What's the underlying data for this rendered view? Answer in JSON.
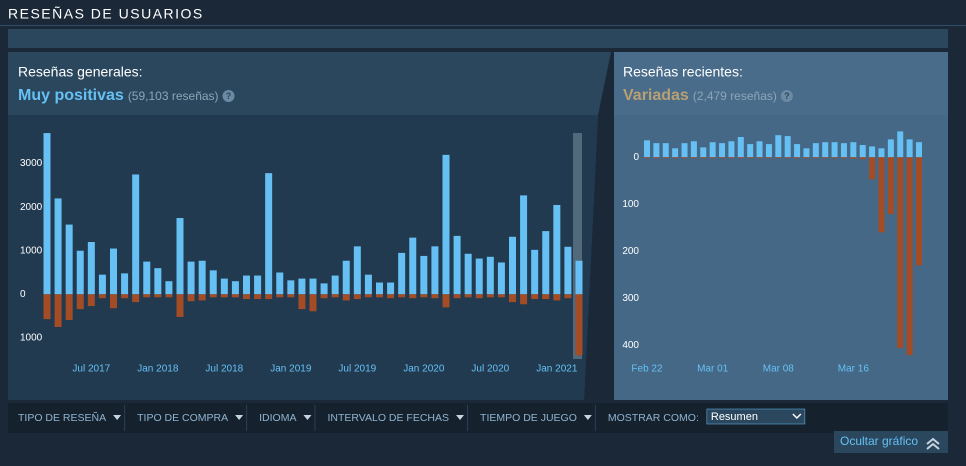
{
  "header": {
    "title": "RESEÑAS DE USUARIOS"
  },
  "chart_data": [
    {
      "type": "bar",
      "title": "Reseñas generales:",
      "rating": "Muy positivas",
      "rating_color": "#66c0f4",
      "review_count": "(59,103 reseñas)",
      "help": "?",
      "categories": [
        null,
        null,
        null,
        null,
        "Jul 2017",
        null,
        null,
        null,
        null,
        null,
        "Jan 2018",
        null,
        null,
        null,
        null,
        null,
        "Jul 2018",
        null,
        null,
        null,
        null,
        null,
        "Jan 2019",
        null,
        null,
        null,
        null,
        null,
        "Jul 2019",
        null,
        null,
        null,
        null,
        null,
        "Jan 2020",
        null,
        null,
        null,
        null,
        null,
        "Jul 2020",
        null,
        null,
        null,
        null,
        null,
        "Jan 2021",
        null,
        null
      ],
      "series": [
        {
          "color": "#66c0f4",
          "values": [
            3700,
            2200,
            1600,
            1000,
            1200,
            450,
            1050,
            480,
            2750,
            750,
            600,
            300,
            1750,
            750,
            770,
            550,
            360,
            300,
            430,
            430,
            2780,
            500,
            320,
            360,
            360,
            250,
            430,
            770,
            1100,
            450,
            270,
            270,
            950,
            1300,
            880,
            1100,
            3200,
            1340,
            930,
            820,
            860,
            730,
            1320,
            2270,
            1020,
            1450,
            2050,
            1090,
            770
          ]
        },
        {
          "color": "#a34c25",
          "values": [
            -570,
            -750,
            -590,
            -340,
            -270,
            -90,
            -320,
            -90,
            -180,
            -70,
            -70,
            -70,
            -520,
            -160,
            -140,
            -70,
            -70,
            -70,
            -110,
            -110,
            -110,
            -70,
            -70,
            -340,
            -390,
            -90,
            -70,
            -140,
            -110,
            -70,
            -70,
            -90,
            -70,
            -90,
            -70,
            -90,
            -300,
            -90,
            -70,
            -90,
            -70,
            -70,
            -180,
            -230,
            -110,
            -110,
            -140,
            -90,
            -1400
          ]
        }
      ],
      "ylim": [
        -1600,
        4000
      ],
      "yticks": [
        3000,
        2000,
        {
          "value": 1000,
          "label": "1000"
        },
        0,
        {
          "value": -1000,
          "label": "1000"
        }
      ]
    },
    {
      "type": "bar",
      "title": "Reseñas recientes:",
      "rating": "Variadas",
      "rating_color": "#b9a074",
      "review_count": "(2,479 reseñas)",
      "help": "?",
      "categories": [
        "Feb 22",
        null,
        null,
        null,
        null,
        null,
        null,
        "Mar 01",
        null,
        null,
        null,
        null,
        null,
        null,
        "Mar 08",
        null,
        null,
        null,
        null,
        null,
        null,
        null,
        "Mar 16",
        null,
        null,
        null,
        null,
        null,
        null,
        null
      ],
      "series": [
        {
          "color": "#66c0f4",
          "values": [
            36,
            30,
            30,
            19,
            30,
            34,
            21,
            32,
            30,
            34,
            43,
            28,
            34,
            28,
            47,
            45,
            28,
            19,
            30,
            32,
            32,
            30,
            32,
            26,
            23,
            19,
            38,
            55,
            38,
            32
          ]
        },
        {
          "color": "#a34c25",
          "values": [
            -2,
            -2,
            -2,
            -2,
            -2,
            -2,
            -2,
            -2,
            -2,
            -2,
            -2,
            -2,
            -2,
            -2,
            -2,
            -2,
            -2,
            -2,
            -2,
            -2,
            -2,
            -2,
            -3,
            -4,
            -47,
            -160,
            -121,
            -406,
            -421,
            -230
          ]
        }
      ],
      "ylim": [
        -440,
        75
      ],
      "yticks": [
        0,
        {
          "value": -100,
          "label": "100"
        },
        {
          "value": -200,
          "label": "200"
        },
        {
          "value": -300,
          "label": "300"
        },
        {
          "value": -400,
          "label": "400"
        }
      ]
    }
  ],
  "filters": {
    "items": [
      "TIPO DE RESEÑA",
      "TIPO DE COMPRA",
      "IDIOMA",
      "INTERVALO DE FECHAS",
      "TIEMPO DE JUEGO"
    ],
    "display_label": "MOSTRAR COMO:",
    "display_value": "Resumen",
    "hide_button": "Ocultar gráfico"
  }
}
